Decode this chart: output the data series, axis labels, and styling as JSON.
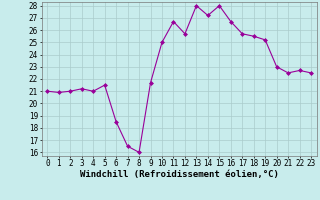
{
  "x": [
    0,
    1,
    2,
    3,
    4,
    5,
    6,
    7,
    8,
    9,
    10,
    11,
    12,
    13,
    14,
    15,
    16,
    17,
    18,
    19,
    20,
    21,
    22,
    23
  ],
  "y": [
    21.0,
    20.9,
    21.0,
    21.2,
    21.0,
    21.5,
    18.5,
    16.5,
    16.0,
    21.7,
    25.0,
    26.7,
    25.7,
    28.0,
    27.2,
    28.0,
    26.7,
    25.7,
    25.5,
    25.2,
    23.0,
    22.5,
    22.7,
    22.5
  ],
  "ylim": [
    16,
    28
  ],
  "yticks": [
    16,
    17,
    18,
    19,
    20,
    21,
    22,
    23,
    24,
    25,
    26,
    27,
    28
  ],
  "xticks": [
    0,
    1,
    2,
    3,
    4,
    5,
    6,
    7,
    8,
    9,
    10,
    11,
    12,
    13,
    14,
    15,
    16,
    17,
    18,
    19,
    20,
    21,
    22,
    23
  ],
  "xlabel": "Windchill (Refroidissement éolien,°C)",
  "line_color": "#990099",
  "marker": "D",
  "marker_size": 2.0,
  "bg_color": "#c8ecec",
  "grid_color": "#aacccc",
  "tick_fontsize": 5.5,
  "xlabel_fontsize": 6.5
}
